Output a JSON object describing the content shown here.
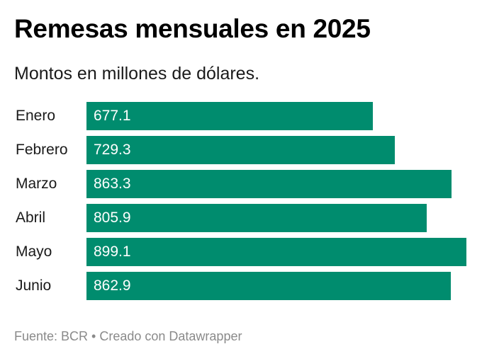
{
  "header": {
    "title": "Remesas mensuales en 2025",
    "subtitle": "Montos en millones de dólares."
  },
  "colors": {
    "bar": "#008c6e",
    "value_text": "#ffffff"
  },
  "chart_data": {
    "type": "bar",
    "orientation": "horizontal",
    "title": "Remesas mensuales en 2025",
    "subtitle": "Montos en millones de dólares.",
    "xlabel": "",
    "ylabel": "",
    "categories": [
      "Enero",
      "Febrero",
      "Marzo",
      "Abril",
      "Mayo",
      "Junio"
    ],
    "values": [
      677.1,
      729.3,
      863.3,
      805.9,
      899.1,
      862.9
    ],
    "value_labels": [
      "677.1",
      "729.3",
      "863.3",
      "805.9",
      "899.1",
      "862.9"
    ],
    "xlim": [
      0,
      899.1
    ],
    "grid": false,
    "legend": "none"
  },
  "footer": {
    "text": "Fuente: BCR • Creado con Datawrapper"
  }
}
